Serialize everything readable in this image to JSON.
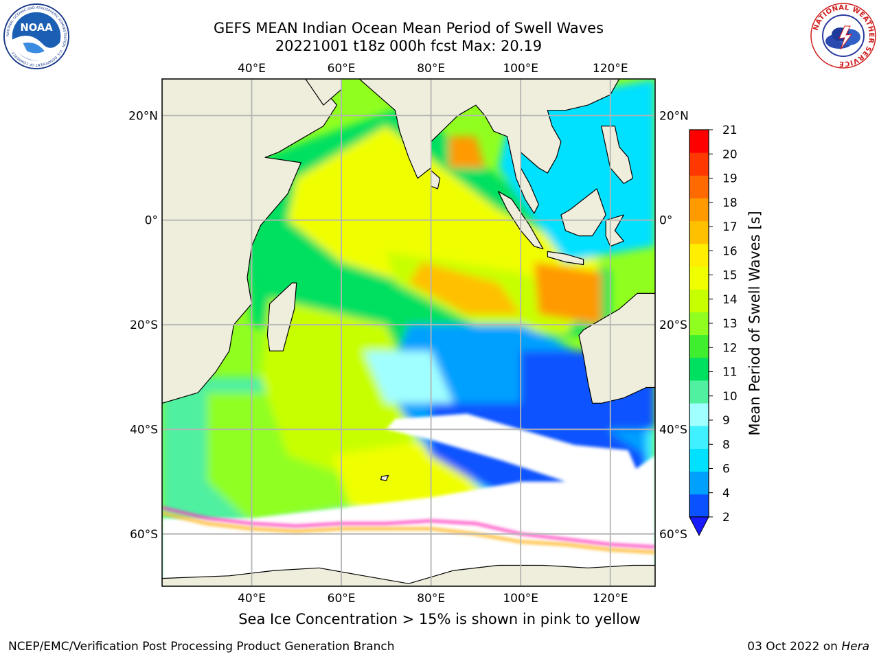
{
  "header": {
    "title_line1": "GEFS MEAN Indian Ocean Mean Period of Swell Waves",
    "title_line2": "20221001 t18z 000h fcst   Max: 20.19"
  },
  "map": {
    "lon_ticks": [
      {
        "label": "40°E",
        "value": 40
      },
      {
        "label": "60°E",
        "value": 60
      },
      {
        "label": "80°E",
        "value": 80
      },
      {
        "label": "100°E",
        "value": 100
      },
      {
        "label": "120°E",
        "value": 120
      }
    ],
    "lat_ticks": [
      {
        "label": "20°N",
        "value": 20
      },
      {
        "label": "0°",
        "value": 0
      },
      {
        "label": "20°S",
        "value": -20
      },
      {
        "label": "40°S",
        "value": -40
      },
      {
        "label": "60°S",
        "value": -60
      }
    ],
    "lon_range": [
      20,
      130
    ],
    "lat_range": [
      -70,
      27
    ],
    "grid": true,
    "land_color": "#efeedc",
    "ice_color": "#ffffff"
  },
  "colorbar": {
    "label": "Mean Period of Swell Waves [s]",
    "ticks": [
      "2",
      "4",
      "6",
      "8",
      "9",
      "10",
      "11",
      "12",
      "13",
      "14",
      "15",
      "16",
      "17",
      "18",
      "19",
      "20",
      "21"
    ],
    "colors": [
      "#0a52ff",
      "#00a0ff",
      "#00e0ff",
      "#40f0ff",
      "#a0ffff",
      "#50f0a0",
      "#00e060",
      "#40ee30",
      "#90ff20",
      "#c8ff00",
      "#f0ff00",
      "#ffee00",
      "#ffc000",
      "#ff9a00",
      "#ff6a00",
      "#ff3800",
      "#ff0000"
    ],
    "extend_color": "#1a1aff"
  },
  "footer": {
    "ice_note": "Sea Ice Concentration > 15% is shown in pink to yellow",
    "credit": "NCEP/EMC/Verification Post Processing Product Generation Branch",
    "date_text": "03 Oct 2022 on ",
    "date_host": "Hera"
  },
  "logos": {
    "noaa_text": "NOAA",
    "noaa_ring_text": "NATIONAL OCEANIC AND ATMOSPHERIC ADMINISTRATION · U.S. DEPARTMENT OF COMMERCE",
    "nws_ring_text": "NATIONAL WEATHER SERVICE",
    "noaa_color": "#1a3a8a",
    "nws_red": "#d01c1c"
  }
}
